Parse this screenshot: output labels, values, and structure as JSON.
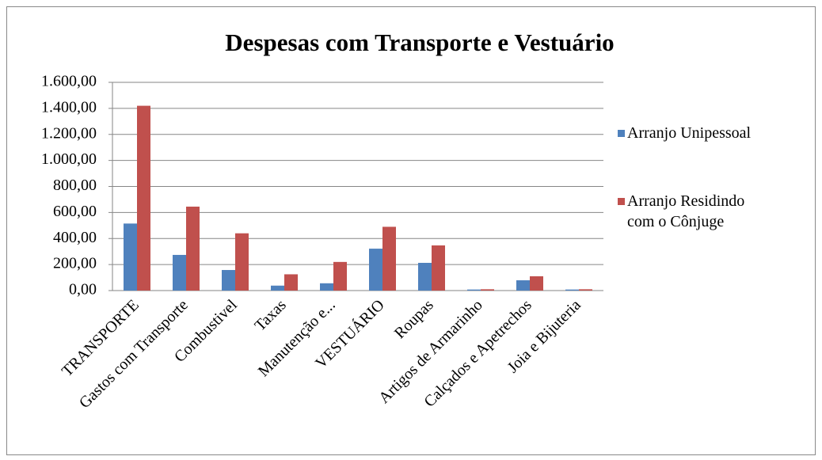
{
  "chart_data": {
    "type": "bar",
    "title": "Despesas com Transporte e Vestuário",
    "categories": [
      "TRANSPORTE",
      "Gastos com Transporte",
      "Combustivel",
      "Taxas",
      "Manutenção e...",
      "VESTUÁRIO",
      "Roupas",
      "Artigos de Armarinho",
      "Calçados e Apetrechos",
      "Joia e Bijuteria"
    ],
    "series": [
      {
        "name": "Arranjo Unipessoal",
        "color": "#4f81bd",
        "values": [
          515,
          274,
          158,
          38,
          56,
          322,
          213,
          8,
          79,
          8
        ]
      },
      {
        "name": "Arranjo Residindo com o Cônjuge",
        "color": "#c0504d",
        "values": [
          1420,
          645,
          440,
          125,
          220,
          490,
          347,
          10,
          110,
          10
        ]
      }
    ],
    "ylim": [
      0,
      1600
    ],
    "yticks": [
      {
        "value": 0,
        "label": "0,00"
      },
      {
        "value": 200,
        "label": "200,00"
      },
      {
        "value": 400,
        "label": "400,00"
      },
      {
        "value": 600,
        "label": "600,00"
      },
      {
        "value": 800,
        "label": "800,00"
      },
      {
        "value": 1000,
        "label": "1.000,00"
      },
      {
        "value": 1200,
        "label": "1.200,00"
      },
      {
        "value": 1400,
        "label": "1.400,00"
      },
      {
        "value": 1600,
        "label": "1.600,00"
      }
    ],
    "grid": true,
    "legend": "right"
  }
}
